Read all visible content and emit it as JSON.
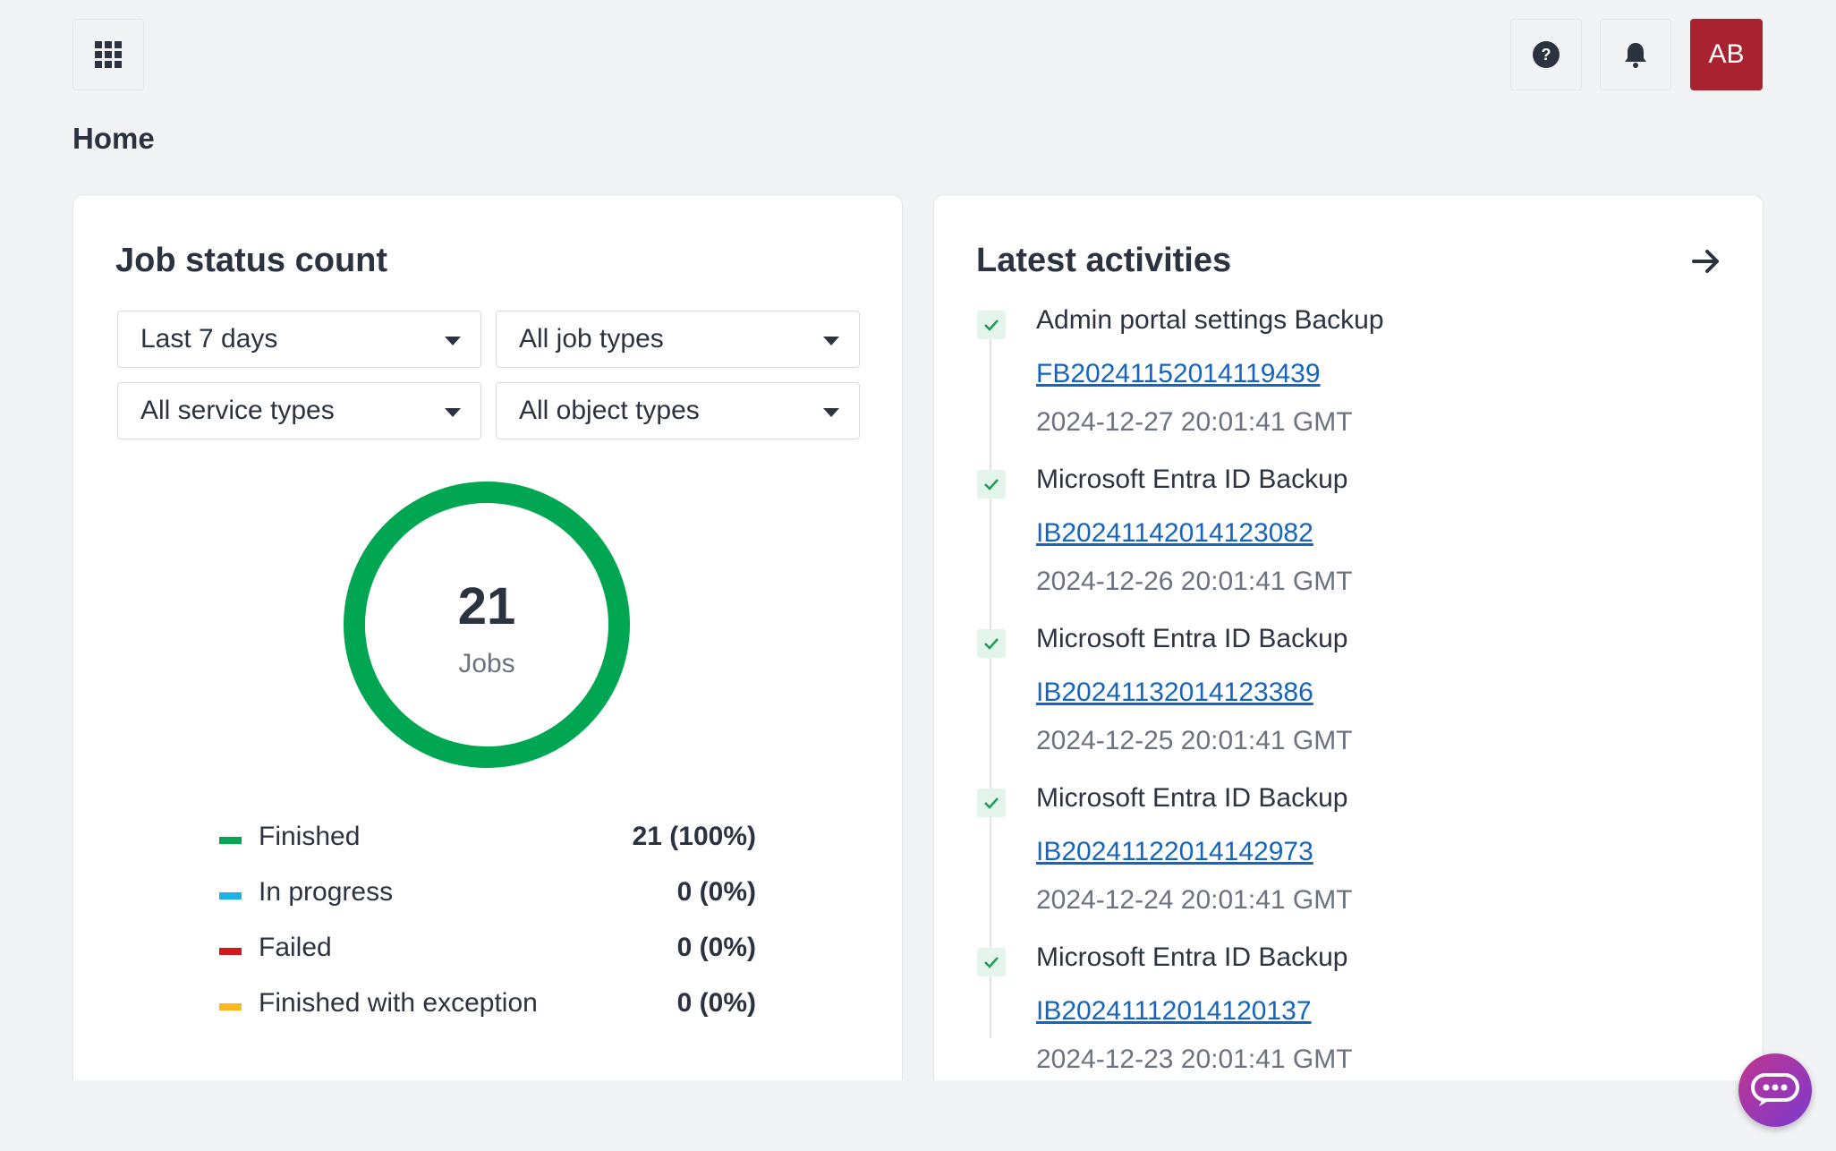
{
  "header": {
    "apps_icon": "grid-icon",
    "help_icon": "help-icon",
    "bell_icon": "bell-icon",
    "avatar_initials": "AB",
    "avatar_color": "#a8232f"
  },
  "page": {
    "title": "Home"
  },
  "job_status": {
    "title": "Job status count",
    "filters": {
      "period": "Last 7 days",
      "job_types": "All job types",
      "service_types": "All service types",
      "object_types": "All object types"
    },
    "total": "21",
    "total_label": "Jobs",
    "legend": [
      {
        "label": "Finished",
        "value": "21 (100%)",
        "color": "#00a651"
      },
      {
        "label": "In progress",
        "value": "0 (0%)",
        "color": "#1ab2e8"
      },
      {
        "label": "Failed",
        "value": "0 (0%)",
        "color": "#d0191f"
      },
      {
        "label": "Finished with exception",
        "value": "0 (0%)",
        "color": "#ffb81c"
      }
    ]
  },
  "chart_data": {
    "type": "pie",
    "categories": [
      "Finished",
      "In progress",
      "Failed",
      "Finished with exception"
    ],
    "values": [
      21,
      0,
      0,
      0
    ],
    "colors": [
      "#00a651",
      "#1ab2e8",
      "#d0191f",
      "#ffb81c"
    ],
    "title": "Job status count"
  },
  "activities": {
    "title": "Latest activities",
    "arrow_icon": "arrow-right-icon",
    "items": [
      {
        "title": "Admin portal settings Backup",
        "id": "FB20241152014119439",
        "time": "2024-12-27 20:01:41 GMT"
      },
      {
        "title": "Microsoft Entra ID Backup",
        "id": "IB20241142014123082",
        "time": "2024-12-26 20:01:41 GMT"
      },
      {
        "title": "Microsoft Entra ID Backup",
        "id": "IB20241132014123386",
        "time": "2024-12-25 20:01:41 GMT"
      },
      {
        "title": "Microsoft Entra ID Backup",
        "id": "IB20241122014142973",
        "time": "2024-12-24 20:01:41 GMT"
      },
      {
        "title": "Microsoft Entra ID Backup",
        "id": "IB20241112014120137",
        "time": "2024-12-23 20:01:41 GMT"
      }
    ]
  },
  "chat": {
    "icon": "chat-icon"
  }
}
